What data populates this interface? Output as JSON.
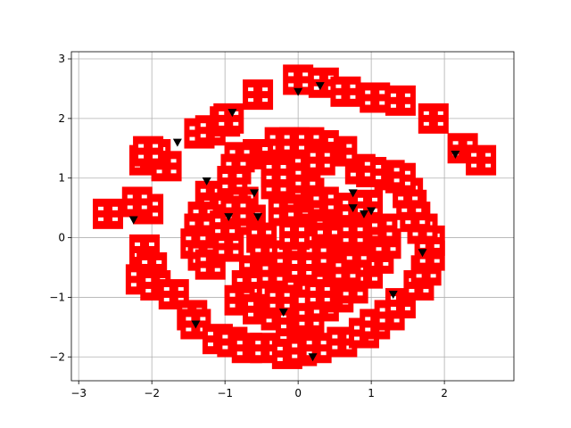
{
  "chart_data": {
    "type": "scatter",
    "title": "",
    "xlabel": "",
    "ylabel": "",
    "xlim": [
      -3.1,
      2.95
    ],
    "ylim": [
      -2.4,
      3.12
    ],
    "grid": true,
    "x_ticks": [
      -3,
      -2,
      -1,
      0,
      1,
      2
    ],
    "y_ticks": [
      -2,
      -1,
      0,
      1,
      2,
      3
    ],
    "x_tick_labels": [
      "−3",
      "−2",
      "−1",
      "0",
      "1",
      "2"
    ],
    "y_tick_labels": [
      "−2",
      "−1",
      "0",
      "1",
      "2",
      "3"
    ],
    "colors": {
      "square_marker": "#ff0000",
      "triangle_marker": "#000000",
      "grid": "#b0b0b0"
    },
    "series": [
      {
        "marker": "square",
        "color": "#ff0000",
        "points": [
          [
            -2.6,
            0.4
          ],
          [
            -2.05,
            0.48
          ],
          [
            -2.2,
            0.6
          ],
          [
            -2.1,
            1.3
          ],
          [
            -1.95,
            1.4
          ],
          [
            -1.8,
            1.2
          ],
          [
            -2.05,
            1.45
          ],
          [
            -1.35,
            1.75
          ],
          [
            -1.2,
            1.8
          ],
          [
            -1.0,
            1.95
          ],
          [
            -0.95,
            2.0
          ],
          [
            -0.55,
            2.4
          ],
          [
            0.0,
            2.65
          ],
          [
            0.35,
            2.6
          ],
          [
            0.65,
            2.45
          ],
          [
            1.05,
            2.35
          ],
          [
            1.4,
            2.3
          ],
          [
            1.85,
            2.0
          ],
          [
            2.25,
            1.5
          ],
          [
            2.5,
            1.3
          ],
          [
            -1.2,
            0.7
          ],
          [
            -1.15,
            0.5
          ],
          [
            -1.3,
            0.35
          ],
          [
            -1.35,
            0.15
          ],
          [
            -1.4,
            -0.1
          ],
          [
            -1.3,
            -0.3
          ],
          [
            -1.2,
            -0.45
          ],
          [
            -2.1,
            -0.2
          ],
          [
            -2.0,
            -0.5
          ],
          [
            -2.15,
            -0.7
          ],
          [
            -1.95,
            -0.8
          ],
          [
            -1.7,
            -0.95
          ],
          [
            -1.45,
            -1.3
          ],
          [
            -1.4,
            -1.45
          ],
          [
            -1.1,
            -1.7
          ],
          [
            -0.9,
            -1.75
          ],
          [
            -0.7,
            -1.85
          ],
          [
            -0.45,
            -1.85
          ],
          [
            -0.15,
            -1.95
          ],
          [
            0.05,
            -1.9
          ],
          [
            0.25,
            -1.85
          ],
          [
            0.6,
            -1.75
          ],
          [
            0.9,
            -1.6
          ],
          [
            1.05,
            -1.45
          ],
          [
            1.25,
            -1.3
          ],
          [
            1.4,
            -1.1
          ],
          [
            1.65,
            -0.8
          ],
          [
            1.75,
            -0.55
          ],
          [
            1.8,
            -0.3
          ],
          [
            1.8,
            -0.05
          ],
          [
            1.7,
            0.15
          ],
          [
            1.6,
            0.35
          ],
          [
            1.55,
            0.55
          ],
          [
            1.5,
            0.75
          ],
          [
            1.4,
            1.0
          ],
          [
            1.25,
            1.05
          ],
          [
            1.0,
            1.1
          ],
          [
            0.85,
            1.15
          ],
          [
            0.6,
            1.45
          ],
          [
            0.35,
            1.55
          ],
          [
            0.15,
            1.6
          ],
          [
            -0.05,
            1.6
          ],
          [
            -0.25,
            1.6
          ],
          [
            -0.55,
            1.4
          ],
          [
            -0.8,
            1.35
          ],
          [
            -0.85,
            1.15
          ],
          [
            -0.9,
            0.95
          ],
          [
            -0.75,
            0.6
          ],
          [
            -0.65,
            0.3
          ],
          [
            -0.5,
            0.0
          ],
          [
            -0.45,
            -0.3
          ],
          [
            -0.6,
            -0.55
          ],
          [
            -0.7,
            -0.8
          ],
          [
            -0.8,
            -1.05
          ],
          [
            -0.55,
            -1.2
          ],
          [
            -0.3,
            -1.3
          ],
          [
            -0.1,
            -1.4
          ],
          [
            0.15,
            -1.35
          ],
          [
            0.35,
            -1.15
          ],
          [
            0.55,
            -1.0
          ],
          [
            0.75,
            -0.85
          ],
          [
            0.95,
            -0.6
          ],
          [
            1.1,
            -0.35
          ],
          [
            1.2,
            -0.1
          ],
          [
            1.15,
            0.15
          ],
          [
            0.95,
            0.3
          ],
          [
            0.75,
            0.35
          ],
          [
            0.55,
            0.5
          ],
          [
            0.35,
            0.6
          ],
          [
            0.15,
            0.75
          ],
          [
            -0.1,
            0.85
          ],
          [
            -0.3,
            0.9
          ],
          [
            -0.2,
            0.45
          ],
          [
            0.0,
            0.3
          ],
          [
            0.2,
            0.15
          ],
          [
            0.4,
            0.0
          ],
          [
            0.5,
            -0.2
          ],
          [
            0.4,
            -0.45
          ],
          [
            0.2,
            -0.6
          ],
          [
            0.0,
            -0.75
          ],
          [
            -0.2,
            -0.85
          ],
          [
            -0.35,
            -0.6
          ],
          [
            -0.15,
            -0.3
          ],
          [
            0.05,
            -0.1
          ],
          [
            0.25,
            -0.3
          ],
          [
            -0.05,
            0.05
          ],
          [
            -0.1,
            1.2
          ],
          [
            0.1,
            1.0
          ],
          [
            0.3,
            1.3
          ],
          [
            -0.3,
            1.1
          ],
          [
            0.05,
            -0.5
          ],
          [
            -0.25,
            -1.05
          ],
          [
            0.3,
            -0.95
          ],
          [
            0.65,
            -0.55
          ],
          [
            0.8,
            -0.25
          ],
          [
            0.75,
            0.05
          ],
          [
            0.95,
            0.55
          ],
          [
            -0.95,
            -0.15
          ],
          [
            -1.0,
            0.2
          ],
          [
            -0.85,
            0.45
          ]
        ]
      },
      {
        "marker": "triangle_down",
        "color": "#000000",
        "points": [
          [
            -2.25,
            0.3
          ],
          [
            -1.65,
            1.6
          ],
          [
            -0.9,
            2.1
          ],
          [
            0.0,
            2.45
          ],
          [
            0.3,
            2.55
          ],
          [
            2.15,
            1.4
          ],
          [
            -1.25,
            0.95
          ],
          [
            -0.6,
            0.75
          ],
          [
            -0.55,
            0.35
          ],
          [
            -0.95,
            0.35
          ],
          [
            0.75,
            0.75
          ],
          [
            0.75,
            0.5
          ],
          [
            1.0,
            0.45
          ],
          [
            0.9,
            0.4
          ],
          [
            -1.4,
            -1.45
          ],
          [
            -0.2,
            -1.25
          ],
          [
            0.2,
            -2.0
          ],
          [
            1.3,
            -0.95
          ],
          [
            1.7,
            -0.25
          ]
        ]
      }
    ]
  }
}
